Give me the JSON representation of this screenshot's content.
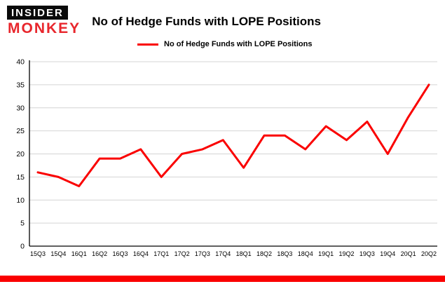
{
  "brand": {
    "line1": "INSIDER",
    "line2": "MONKEY"
  },
  "header": {
    "title": "No of Hedge Funds with LOPE Positions"
  },
  "legend": {
    "label": "No of Hedge Funds with LOPE Positions"
  },
  "colors": {
    "accent": "#fa0000",
    "line": "#fa0000",
    "grid": "#d4d4d4",
    "axis": "#000000",
    "logo_red": "#e8262c"
  },
  "chart_data": {
    "type": "line",
    "title": "No of Hedge Funds with LOPE Positions",
    "categories": [
      "15Q3",
      "15Q4",
      "16Q1",
      "16Q2",
      "16Q3",
      "16Q4",
      "17Q1",
      "17Q2",
      "17Q3",
      "17Q4",
      "18Q1",
      "18Q2",
      "18Q3",
      "18Q4",
      "19Q1",
      "19Q2",
      "19Q3",
      "19Q4",
      "20Q1",
      "20Q2"
    ],
    "series": [
      {
        "name": "No of Hedge Funds with LOPE Positions",
        "values": [
          16,
          15,
          13,
          19,
          19,
          21,
          15,
          20,
          21,
          23,
          17,
          24,
          24,
          21,
          26,
          23,
          27,
          20,
          28,
          35
        ]
      }
    ],
    "xlabel": "",
    "ylabel": "",
    "ylim": [
      0,
      40
    ],
    "yticks": [
      0,
      5,
      10,
      15,
      20,
      25,
      30,
      35,
      40
    ],
    "grid": true,
    "legend_position": "top-left"
  }
}
